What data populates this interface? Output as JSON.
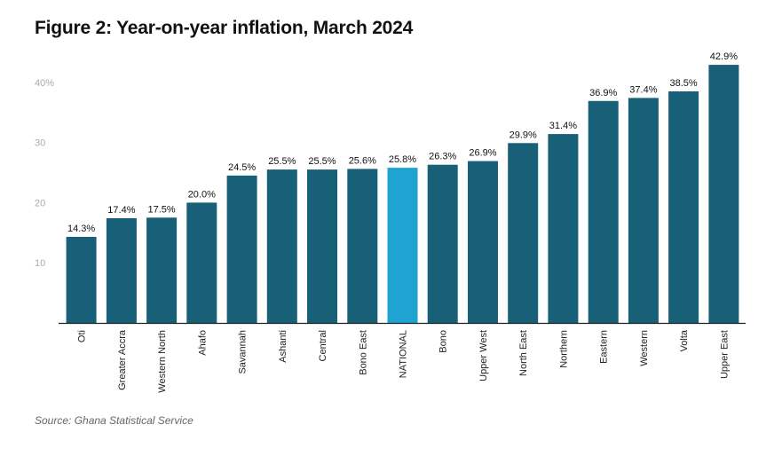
{
  "title": "Figure 2: Year-on-year inflation, March 2024",
  "source": "Source: Ghana Statistical Service",
  "colors": {
    "bar": "#185f78",
    "highlight": "#1fa3d0",
    "axis_line": "#222222",
    "tick_label": "#aaaaaa",
    "value_label": "#111111",
    "category_label": "#222222"
  },
  "chart_data": {
    "type": "bar",
    "title": "Figure 2: Year-on-year inflation, March 2024",
    "xlabel": "",
    "ylabel": "",
    "ylim": [
      0,
      45
    ],
    "yticks": [
      10,
      20,
      30,
      40
    ],
    "ytick_labels": [
      "10",
      "20",
      "30",
      "40%"
    ],
    "grid": false,
    "legend": "none",
    "highlight_category": "NATIONAL",
    "categories": [
      "Oti",
      "Greater Accra",
      "Western North",
      "Ahafo",
      "Savannah",
      "Ashanti",
      "Central",
      "Bono East",
      "NATIONAL",
      "Bono",
      "Upper West",
      "North East",
      "Northern",
      "Eastern",
      "Western",
      "Volta",
      "Upper East"
    ],
    "values": [
      14.3,
      17.4,
      17.5,
      20.0,
      24.5,
      25.5,
      25.5,
      25.6,
      25.8,
      26.3,
      26.9,
      29.9,
      31.4,
      36.9,
      37.4,
      38.5,
      42.9
    ],
    "value_labels": [
      "14.3%",
      "17.4%",
      "17.5%",
      "20.0%",
      "24.5%",
      "25.5%",
      "25.5%",
      "25.6%",
      "25.8%",
      "26.3%",
      "26.9%",
      "29.9%",
      "31.4%",
      "36.9%",
      "37.4%",
      "38.5%",
      "42.9%"
    ]
  }
}
